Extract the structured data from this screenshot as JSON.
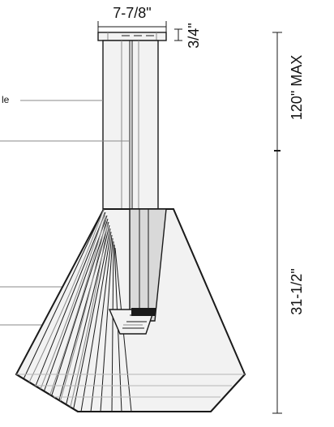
{
  "dimensions": {
    "canopy_width": "7-7/8\"",
    "canopy_height": "3/4\"",
    "overall_max": "120\" MAX",
    "shade_height": "31-1/2\""
  },
  "callouts": {
    "top_label_fragment": "le"
  }
}
